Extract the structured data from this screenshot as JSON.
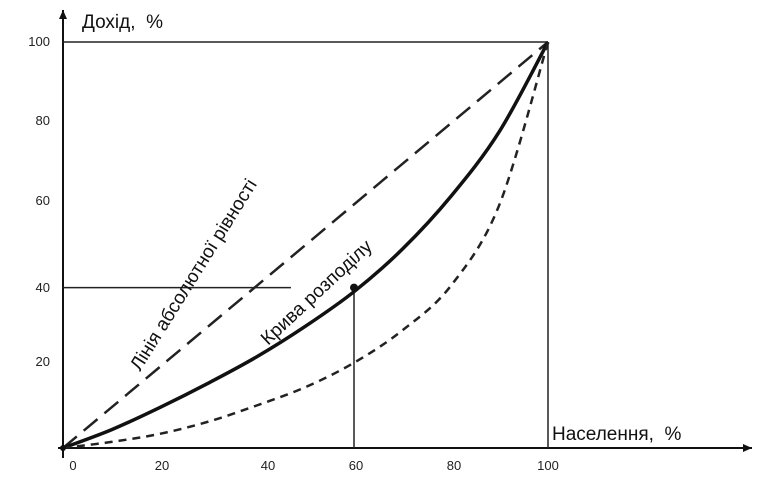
{
  "chart_data": {
    "type": "line",
    "xlabel": "Населення,  %",
    "ylabel": "Дохід,  %",
    "xlim": [
      0,
      100
    ],
    "ylim": [
      0,
      100
    ],
    "x_ticks": [
      "0",
      "20",
      "40",
      "60",
      "80",
      "100"
    ],
    "y_ticks": [
      "20",
      "40",
      "60",
      "80",
      "100"
    ],
    "grid": false,
    "series": [
      {
        "name": "Лінія абсолютної рівності",
        "style": "long-dash",
        "x": [
          0,
          100
        ],
        "y": [
          0,
          100
        ]
      },
      {
        "name": "Крива розподілу",
        "style": "solid-thick",
        "x": [
          0,
          10,
          20,
          30,
          40,
          50,
          60,
          70,
          80,
          90,
          100
        ],
        "y": [
          0,
          4.5,
          10,
          16,
          22.5,
          30,
          38.5,
          49,
          62,
          78,
          100
        ]
      },
      {
        "style": "short-dash",
        "x": [
          0,
          10,
          20,
          30,
          40,
          50,
          60,
          70,
          80,
          90,
          100
        ],
        "y": [
          0,
          1.5,
          3.5,
          6.5,
          10.5,
          15,
          21,
          29,
          40,
          60,
          100
        ]
      }
    ],
    "highlight_point": {
      "x": 60,
      "y": 40
    }
  }
}
